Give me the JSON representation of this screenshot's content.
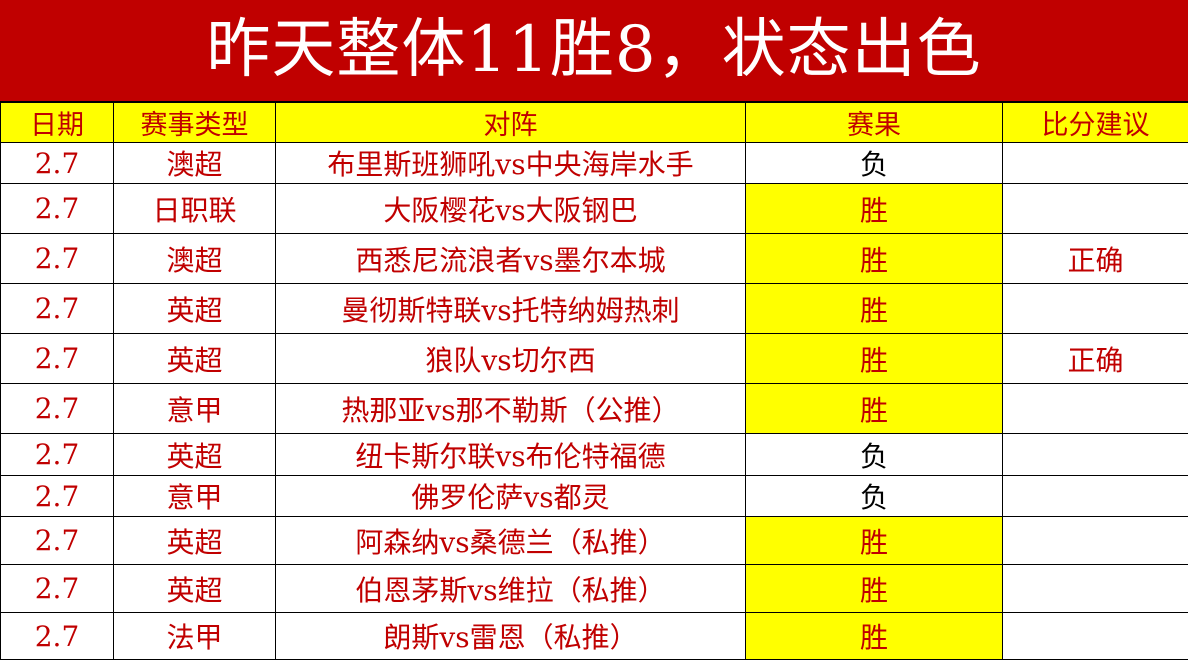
{
  "title": "昨天整体11胜8，状态出色",
  "columns": [
    "日期",
    "赛事类型",
    "对阵",
    "赛果",
    "比分建议"
  ],
  "rows": [
    {
      "date": "2.7",
      "league": "澳超",
      "match": "布里斯班狮吼vs中央海岸水手",
      "result": "负",
      "score": ""
    },
    {
      "date": "2.7",
      "league": "日职联",
      "match": "大阪樱花vs大阪钢巴",
      "result": "胜",
      "score": ""
    },
    {
      "date": "2.7",
      "league": "澳超",
      "match": "西悉尼流浪者vs墨尔本城",
      "result": "胜",
      "score": "正确"
    },
    {
      "date": "2.7",
      "league": "英超",
      "match": "曼彻斯特联vs托特纳姆热刺",
      "result": "胜",
      "score": ""
    },
    {
      "date": "2.7",
      "league": "英超",
      "match": "狼队vs切尔西",
      "result": "胜",
      "score": "正确"
    },
    {
      "date": "2.7",
      "league": "意甲",
      "match": "热那亚vs那不勒斯（公推）",
      "result": "胜",
      "score": ""
    },
    {
      "date": "2.7",
      "league": "英超",
      "match": "纽卡斯尔联vs布伦特福德",
      "result": "负",
      "score": ""
    },
    {
      "date": "2.7",
      "league": "意甲",
      "match": "佛罗伦萨vs都灵",
      "result": "负",
      "score": ""
    },
    {
      "date": "2.7",
      "league": "英超",
      "match": "阿森纳vs桑德兰（私推）",
      "result": "胜",
      "score": ""
    },
    {
      "date": "2.7",
      "league": "英超",
      "match": "伯恩茅斯vs维拉（私推）",
      "result": "胜",
      "score": ""
    },
    {
      "date": "2.7",
      "league": "法甲",
      "match": "朗斯vs雷恩（私推）",
      "result": "胜",
      "score": ""
    }
  ],
  "colors": {
    "title_bg": "#c00000",
    "header_bg": "#ffff00",
    "win_bg": "#ffff00",
    "text": "#c00000"
  }
}
